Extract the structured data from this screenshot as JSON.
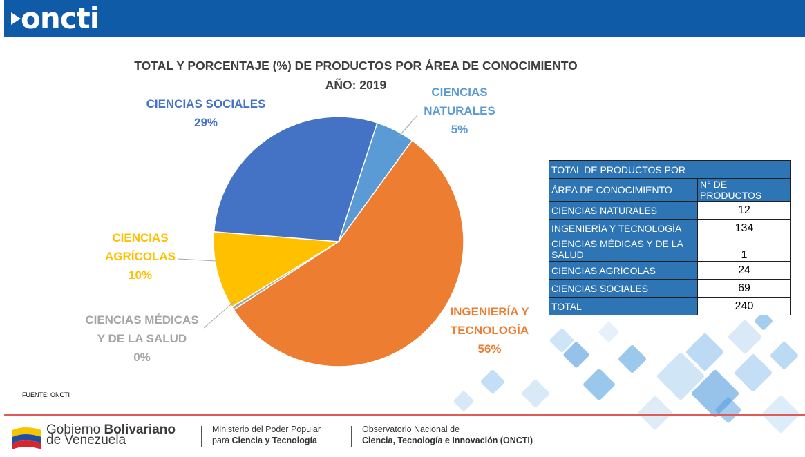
{
  "header": {
    "logo_text": "oncti"
  },
  "title": {
    "line1": "TOTAL Y PORCENTAJE (%) DE PRODUCTOS POR ÁREA DE CONOCIMIENTO",
    "line2": "AÑO: 2019"
  },
  "chart_data": {
    "type": "pie",
    "title": "TOTAL Y PORCENTAJE (%) DE PRODUCTOS POR ÁREA DE CONOCIMIENTO",
    "subtitle": "AÑO: 2019",
    "slices": [
      {
        "name": "CIENCIAS NATURALES",
        "value": 12,
        "percent_label": "5%",
        "color": "#5b9bd5"
      },
      {
        "name": "INGENIERÍA Y TECNOLOGÍA",
        "value": 134,
        "percent_label": "56%",
        "color": "#ed7d31"
      },
      {
        "name": "CIENCIAS MÉDICAS Y DE LA SALUD",
        "value": 1,
        "percent_label": "0%",
        "color": "#a5a5a5"
      },
      {
        "name": "CIENCIAS AGRÍCOLAS",
        "value": 24,
        "percent_label": "10%",
        "color": "#ffc000"
      },
      {
        "name": "CIENCIAS SOCIALES",
        "value": 69,
        "percent_label": "29%",
        "color": "#4472c4"
      }
    ]
  },
  "labels": {
    "naturales": [
      "CIENCIAS",
      "NATURALES",
      "5%"
    ],
    "sociales": [
      "CIENCIAS SOCIALES",
      "29%"
    ],
    "agricolas": [
      "CIENCIAS",
      "AGRÍCOLAS",
      "10%"
    ],
    "medicas": [
      "CIENCIAS MÉDICAS",
      "Y DE LA SALUD",
      "0%"
    ],
    "ingenieria": [
      "INGENIERÍA Y",
      "TECNOLOGÍA",
      "56%"
    ]
  },
  "table": {
    "title_line": "TOTAL DE PRODUCTOS POR",
    "col1_header": "ÁREA DE CONOCIMIENTO",
    "col2_header": "N° DE PRODUCTOS",
    "rows": [
      {
        "label": "CIENCIAS NATURALES",
        "value": "12"
      },
      {
        "label": "INGENIERÍA Y TECNOLOGÍA",
        "value": "134"
      },
      {
        "label": "CIENCIAS MÉDICAS Y DE LA SALUD",
        "value": "1"
      },
      {
        "label": "CIENCIAS AGRÍCOLAS",
        "value": "24"
      },
      {
        "label": "CIENCIAS SOCIALES",
        "value": "69"
      },
      {
        "label": "TOTAL",
        "value": "240"
      }
    ]
  },
  "fuente": "FUENTE: ONCTI",
  "footer": {
    "gov_line1_a": "Gobierno",
    "gov_line1_b": "Bolivariano",
    "gov_line2": "de Venezuela",
    "min_line1": "Ministerio del Poder Popular",
    "min_line2_a": "para",
    "min_line2_b": "Ciencia y Tecnología",
    "obs_line1": "Observatorio Nacional de",
    "obs_line2": "Ciencia, Tecnología e Innovación (ONCTI)"
  }
}
